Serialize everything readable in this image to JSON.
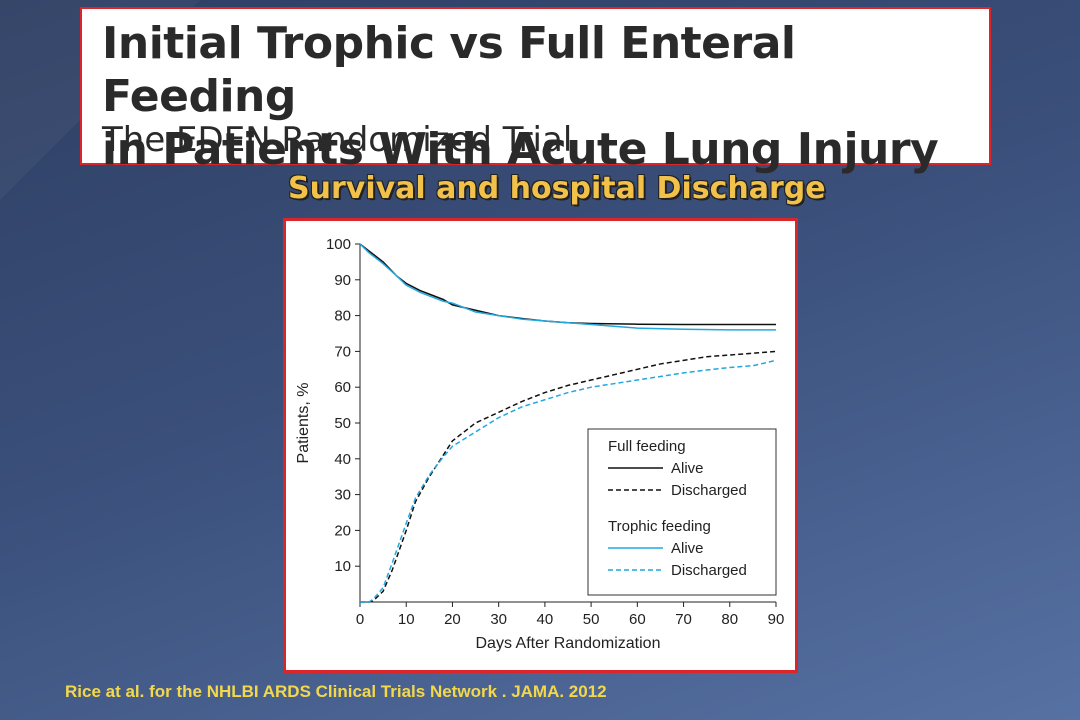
{
  "slide": {
    "title_line1": "Initial Trophic vs Full Enteral Feeding",
    "title_line2": "in Patients With Acute Lung Injury",
    "title_sub": "The EDEN Randomized Trial",
    "subtitle": "Survival and hospital Discharge",
    "citation": "Rice at al. for the NHLBI ARDS Clinical Trials Network . JAMA. 2012"
  },
  "colors": {
    "full_feeding": "#111111",
    "trophic_feeding": "#22a8df",
    "frame_border": "#d8262b",
    "subtitle": "#f2c14a",
    "citation": "#f3d84a"
  },
  "chart_data": {
    "type": "line",
    "xlabel": "Days After Randomization",
    "ylabel": "Patients, %",
    "xlim": [
      0,
      90
    ],
    "ylim": [
      0,
      100
    ],
    "xticks": [
      0,
      10,
      20,
      30,
      40,
      50,
      60,
      70,
      80,
      90
    ],
    "yticks": [
      10,
      20,
      30,
      40,
      50,
      60,
      70,
      80,
      90,
      100
    ],
    "legend": {
      "placement": "right",
      "groups": [
        {
          "title": "Full feeding",
          "entries": [
            {
              "label": "Alive",
              "series": 0
            },
            {
              "label": "Discharged",
              "series": 1
            }
          ]
        },
        {
          "title": "Trophic feeding",
          "entries": [
            {
              "label": "Alive",
              "series": 2
            },
            {
              "label": "Discharged",
              "series": 3
            }
          ]
        }
      ]
    },
    "series": [
      {
        "group": "Full feeding",
        "name": "Alive",
        "style": "solid",
        "color": "#111111",
        "x": [
          0,
          2,
          5,
          8,
          10,
          13,
          15,
          18,
          20,
          25,
          30,
          35,
          40,
          45,
          50,
          60,
          70,
          80,
          90
        ],
        "y": [
          100,
          98,
          95,
          91,
          89,
          87,
          86,
          84.5,
          83,
          81.5,
          80,
          79.2,
          78.5,
          78,
          77.8,
          77.6,
          77.5,
          77.5,
          77.5
        ]
      },
      {
        "group": "Full feeding",
        "name": "Discharged",
        "style": "dashed",
        "color": "#111111",
        "x": [
          0,
          2,
          3,
          5,
          7,
          10,
          12,
          15,
          18,
          20,
          25,
          30,
          35,
          40,
          45,
          50,
          55,
          60,
          65,
          70,
          75,
          80,
          85,
          90
        ],
        "y": [
          0,
          0,
          0.5,
          3,
          9,
          20,
          28,
          35,
          41,
          45,
          50,
          53,
          56,
          58.5,
          60.5,
          62,
          63.5,
          65,
          66.5,
          67.5,
          68.5,
          69,
          69.5,
          70
        ]
      },
      {
        "group": "Trophic feeding",
        "name": "Alive",
        "style": "solid",
        "color": "#22a8df",
        "x": [
          0,
          2,
          5,
          8,
          10,
          13,
          15,
          18,
          20,
          25,
          30,
          35,
          40,
          45,
          50,
          60,
          70,
          80,
          90
        ],
        "y": [
          100,
          97.5,
          94.5,
          91,
          88.5,
          86.5,
          85.5,
          84,
          83.5,
          81,
          80,
          79,
          78.5,
          78,
          77.5,
          76.5,
          76.2,
          76,
          76
        ]
      },
      {
        "group": "Trophic feeding",
        "name": "Discharged",
        "style": "dashed",
        "color": "#22a8df",
        "x": [
          0,
          2,
          3,
          5,
          7,
          10,
          12,
          15,
          18,
          20,
          25,
          30,
          35,
          40,
          45,
          50,
          55,
          60,
          65,
          70,
          75,
          80,
          85,
          90
        ],
        "y": [
          0,
          0,
          1,
          4,
          11,
          22,
          29,
          35.5,
          40.5,
          43.5,
          47.5,
          51.5,
          54.5,
          56.5,
          58.5,
          60,
          61,
          62,
          63,
          64,
          64.8,
          65.5,
          66,
          67.5
        ]
      }
    ]
  }
}
